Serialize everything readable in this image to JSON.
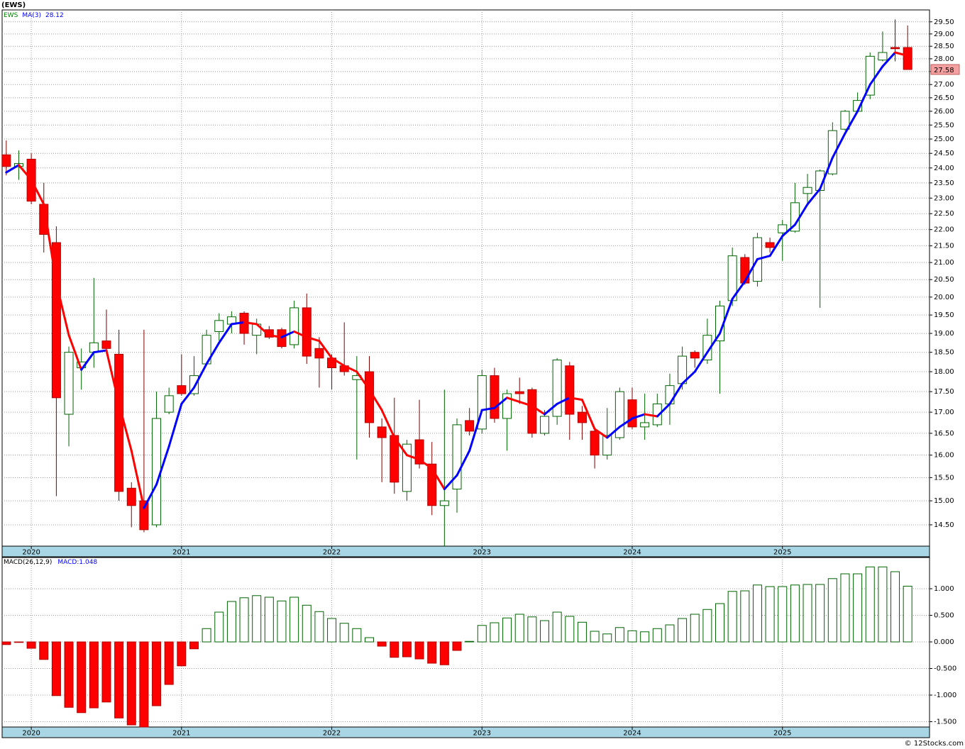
{
  "chart_data": [
    {
      "type": "candlestick",
      "title": "(EWS)",
      "symbol": "EWS",
      "categories": [
        null,
        null,
        "2020",
        null,
        null,
        null,
        null,
        null,
        null,
        null,
        null,
        null,
        null,
        null,
        "2021",
        null,
        null,
        null,
        null,
        null,
        null,
        null,
        null,
        null,
        null,
        null,
        "2022",
        null,
        null,
        null,
        null,
        null,
        null,
        null,
        null,
        null,
        null,
        null,
        "2023",
        null,
        null,
        null,
        null,
        null,
        null,
        null,
        null,
        null,
        null,
        null,
        "2024",
        null,
        null,
        null,
        null,
        null,
        null,
        null,
        null,
        null,
        null,
        null,
        "2025",
        null,
        null,
        null,
        null,
        null,
        null,
        null,
        null,
        null,
        null
      ],
      "open": [
        24.45,
        24.05,
        24.3,
        22.8,
        21.6,
        16.95,
        18.1,
        18.5,
        18.8,
        18.45,
        15.27,
        15.0,
        14.5,
        17.0,
        17.65,
        17.45,
        18.2,
        19.05,
        19.25,
        19.55,
        18.95,
        19.1,
        19.1,
        18.7,
        19.7,
        18.6,
        18.35,
        18.15,
        17.8,
        18.0,
        16.65,
        16.45,
        15.2,
        16.35,
        15.8,
        14.9,
        15.25,
        16.8,
        16.6,
        17.9,
        16.85,
        17.5,
        17.55,
        16.5,
        16.9,
        18.15,
        17.0,
        16.55,
        16.0,
        16.4,
        17.3,
        16.65,
        16.7,
        17.2,
        17.7,
        18.5,
        18.3,
        18.8,
        19.9,
        21.15,
        20.45,
        21.6,
        21.9,
        21.95,
        23.15,
        23.25,
        23.8,
        25.35,
        26.0,
        26.6,
        27.95,
        28.45,
        28.45
      ],
      "high": [
        24.95,
        24.6,
        24.5,
        23.5,
        22.1,
        18.65,
        18.6,
        20.55,
        19.65,
        19.1,
        15.4,
        19.1,
        17.5,
        17.6,
        18.45,
        18.4,
        19.1,
        19.55,
        19.6,
        19.6,
        19.4,
        19.2,
        19.15,
        19.9,
        20.1,
        18.9,
        18.45,
        19.3,
        18.4,
        18.4,
        16.85,
        17.35,
        16.35,
        17.3,
        16.3,
        17.55,
        16.85,
        17.1,
        18.05,
        18.1,
        17.55,
        17.85,
        17.6,
        17.05,
        18.35,
        18.25,
        17.15,
        16.65,
        17.1,
        17.6,
        17.6,
        17.45,
        17.45,
        17.95,
        18.65,
        18.55,
        19.4,
        19.9,
        21.45,
        21.25,
        21.9,
        21.75,
        22.3,
        23.5,
        23.8,
        23.95,
        25.6,
        26.05,
        26.7,
        28.25,
        29.1,
        29.6,
        29.35
      ],
      "low": [
        23.75,
        23.6,
        22.8,
        21.3,
        15.1,
        16.2,
        17.55,
        18.1,
        18.45,
        15.0,
        14.45,
        14.35,
        14.45,
        16.95,
        17.4,
        17.4,
        18.15,
        18.8,
        19.0,
        18.7,
        18.45,
        18.85,
        18.6,
        18.6,
        18.2,
        17.6,
        17.55,
        17.9,
        15.9,
        16.4,
        15.4,
        15.15,
        15.0,
        15.7,
        14.7,
        14.07,
        14.75,
        16.45,
        16.5,
        16.75,
        16.1,
        17.2,
        16.4,
        16.45,
        16.7,
        16.35,
        16.35,
        15.7,
        15.9,
        16.35,
        16.6,
        16.35,
        16.65,
        16.7,
        17.55,
        18.1,
        18.2,
        17.45,
        19.75,
        20.35,
        20.3,
        21.3,
        21.05,
        21.9,
        22.75,
        19.7,
        23.75,
        25.3,
        25.95,
        26.45,
        27.9,
        27.9,
        27.58
      ],
      "close": [
        24.05,
        24.15,
        22.9,
        21.85,
        17.35,
        18.5,
        18.25,
        18.75,
        18.6,
        15.2,
        14.9,
        14.4,
        16.85,
        17.4,
        17.45,
        17.9,
        18.95,
        19.35,
        19.45,
        19.0,
        19.25,
        18.9,
        18.65,
        19.7,
        18.4,
        18.35,
        18.1,
        18.0,
        17.9,
        16.75,
        16.4,
        15.4,
        16.25,
        15.8,
        14.9,
        15.0,
        16.7,
        16.55,
        17.9,
        16.85,
        17.45,
        17.45,
        16.5,
        16.9,
        18.3,
        16.95,
        16.75,
        16.0,
        16.45,
        17.5,
        16.65,
        16.75,
        17.2,
        17.65,
        18.4,
        18.35,
        18.95,
        19.75,
        21.2,
        20.4,
        21.75,
        21.45,
        22.15,
        22.85,
        23.35,
        23.9,
        25.3,
        26.0,
        26.4,
        28.1,
        28.25,
        28.4,
        27.58
      ],
      "up_color": "#006400",
      "down_color": "#ff0000",
      "symbol_color": "#008000",
      "series": [
        {
          "name": "MA(3)",
          "color": "#0000ff",
          "down_color": "#ff0000",
          "values": [
            23.85,
            24.1,
            23.6,
            22.8,
            20.4,
            18.95,
            18.05,
            18.5,
            18.55,
            17.2,
            16.1,
            14.85,
            15.35,
            16.2,
            17.2,
            17.6,
            18.2,
            18.75,
            19.25,
            19.3,
            19.25,
            18.95,
            18.9,
            19.05,
            18.9,
            18.8,
            18.35,
            18.15,
            18.0,
            17.55,
            17.05,
            16.4,
            16.0,
            15.9,
            15.7,
            15.25,
            15.55,
            16.1,
            17.05,
            17.1,
            17.35,
            17.25,
            17.15,
            16.95,
            17.2,
            17.35,
            17.3,
            16.6,
            16.4,
            16.65,
            16.85,
            16.95,
            16.9,
            17.2,
            17.7,
            18.0,
            18.5,
            19.0,
            19.95,
            20.45,
            21.1,
            21.2,
            21.8,
            22.15,
            22.8,
            23.3,
            24.35,
            25.2,
            26.0,
            27.0,
            27.7,
            28.25,
            28.12
          ]
        }
      ],
      "ylim": [
        14.07,
        30.0
      ],
      "log_scale": true,
      "grid": true,
      "yticks": [
        {
          "value": 14.5,
          "label": "14.50"
        },
        {
          "value": 15,
          "label": "15.00"
        },
        {
          "value": 15.5,
          "label": "15.50"
        },
        {
          "value": 16,
          "label": "16.00"
        },
        {
          "value": 16.5,
          "label": "16.50"
        },
        {
          "value": 17,
          "label": "17.00"
        },
        {
          "value": 17.5,
          "label": "17.50"
        },
        {
          "value": 18,
          "label": "18.00"
        },
        {
          "value": 18.5,
          "label": "18.50"
        },
        {
          "value": 19,
          "label": "19.00"
        },
        {
          "value": 19.5,
          "label": "19.50"
        },
        {
          "value": 20,
          "label": "20.00"
        },
        {
          "value": 20.5,
          "label": "20.50"
        },
        {
          "value": 21,
          "label": "21.00"
        },
        {
          "value": 21.5,
          "label": "21.50"
        },
        {
          "value": 22,
          "label": "22.00"
        },
        {
          "value": 22.5,
          "label": "22.50"
        },
        {
          "value": 23,
          "label": "23.00"
        },
        {
          "value": 23.5,
          "label": "23.50"
        },
        {
          "value": 24,
          "label": "24.00"
        },
        {
          "value": 24.5,
          "label": "24.50"
        },
        {
          "value": 25,
          "label": "25.00"
        },
        {
          "value": 25.5,
          "label": "25.50"
        },
        {
          "value": 26,
          "label": "26.00"
        },
        {
          "value": 26.5,
          "label": "26.50"
        },
        {
          "value": 27,
          "label": "27.00"
        },
        {
          "value": 27.5,
          "label": "27.50"
        },
        {
          "value": 28,
          "label": "28.00"
        },
        {
          "value": 28.5,
          "label": "28.50"
        },
        {
          "value": 29,
          "label": "29.00"
        },
        {
          "value": 29.5,
          "label": "29.50"
        }
      ]
    },
    {
      "type": "bar",
      "title": "MACD(26,12,9)",
      "categories": [
        null,
        null,
        "2020",
        null,
        null,
        null,
        null,
        null,
        null,
        null,
        null,
        null,
        null,
        null,
        "2021",
        null,
        null,
        null,
        null,
        null,
        null,
        null,
        null,
        null,
        null,
        null,
        "2022",
        null,
        null,
        null,
        null,
        null,
        null,
        null,
        null,
        null,
        null,
        null,
        "2023",
        null,
        null,
        null,
        null,
        null,
        null,
        null,
        null,
        null,
        null,
        null,
        "2024",
        null,
        null,
        null,
        null,
        null,
        null,
        null,
        null,
        null,
        null,
        null,
        "2025",
        null,
        null,
        null,
        null,
        null,
        null,
        null,
        null,
        null,
        null
      ],
      "series": [
        {
          "name": "MACD:",
          "color": "#006400",
          "down_color": "#ff0000",
          "legend_color": "#0000ff",
          "values": [
            -0.05,
            -0.01,
            -0.12,
            -0.33,
            -1.01,
            -1.23,
            -1.33,
            -1.24,
            -1.13,
            -1.43,
            -1.56,
            -1.6,
            -1.2,
            -0.8,
            -0.45,
            -0.13,
            0.25,
            0.56,
            0.76,
            0.83,
            0.87,
            0.84,
            0.77,
            0.84,
            0.69,
            0.57,
            0.44,
            0.35,
            0.25,
            0.08,
            -0.08,
            -0.29,
            -0.28,
            -0.32,
            -0.4,
            -0.43,
            -0.16,
            0.01,
            0.31,
            0.36,
            0.45,
            0.52,
            0.47,
            0.4,
            0.56,
            0.48,
            0.37,
            0.2,
            0.15,
            0.27,
            0.21,
            0.19,
            0.25,
            0.32,
            0.44,
            0.52,
            0.61,
            0.72,
            0.95,
            0.96,
            1.07,
            1.04,
            1.04,
            1.07,
            1.08,
            1.08,
            1.19,
            1.28,
            1.28,
            1.41,
            1.41,
            1.32,
            1.048
          ]
        }
      ],
      "ylim": [
        -1.6,
        1.587
      ],
      "grid": true,
      "yticks": [
        {
          "value": 1,
          "label": "1.000"
        },
        {
          "value": 0.5,
          "label": "0.500"
        },
        {
          "value": 0,
          "label": "0.000"
        },
        {
          "value": -0.5,
          "label": "-0.500"
        },
        {
          "value": -1,
          "label": "-1.000"
        },
        {
          "value": -1.5,
          "label": "-1.500"
        }
      ]
    }
  ],
  "credit": "© 12Stocks.com"
}
